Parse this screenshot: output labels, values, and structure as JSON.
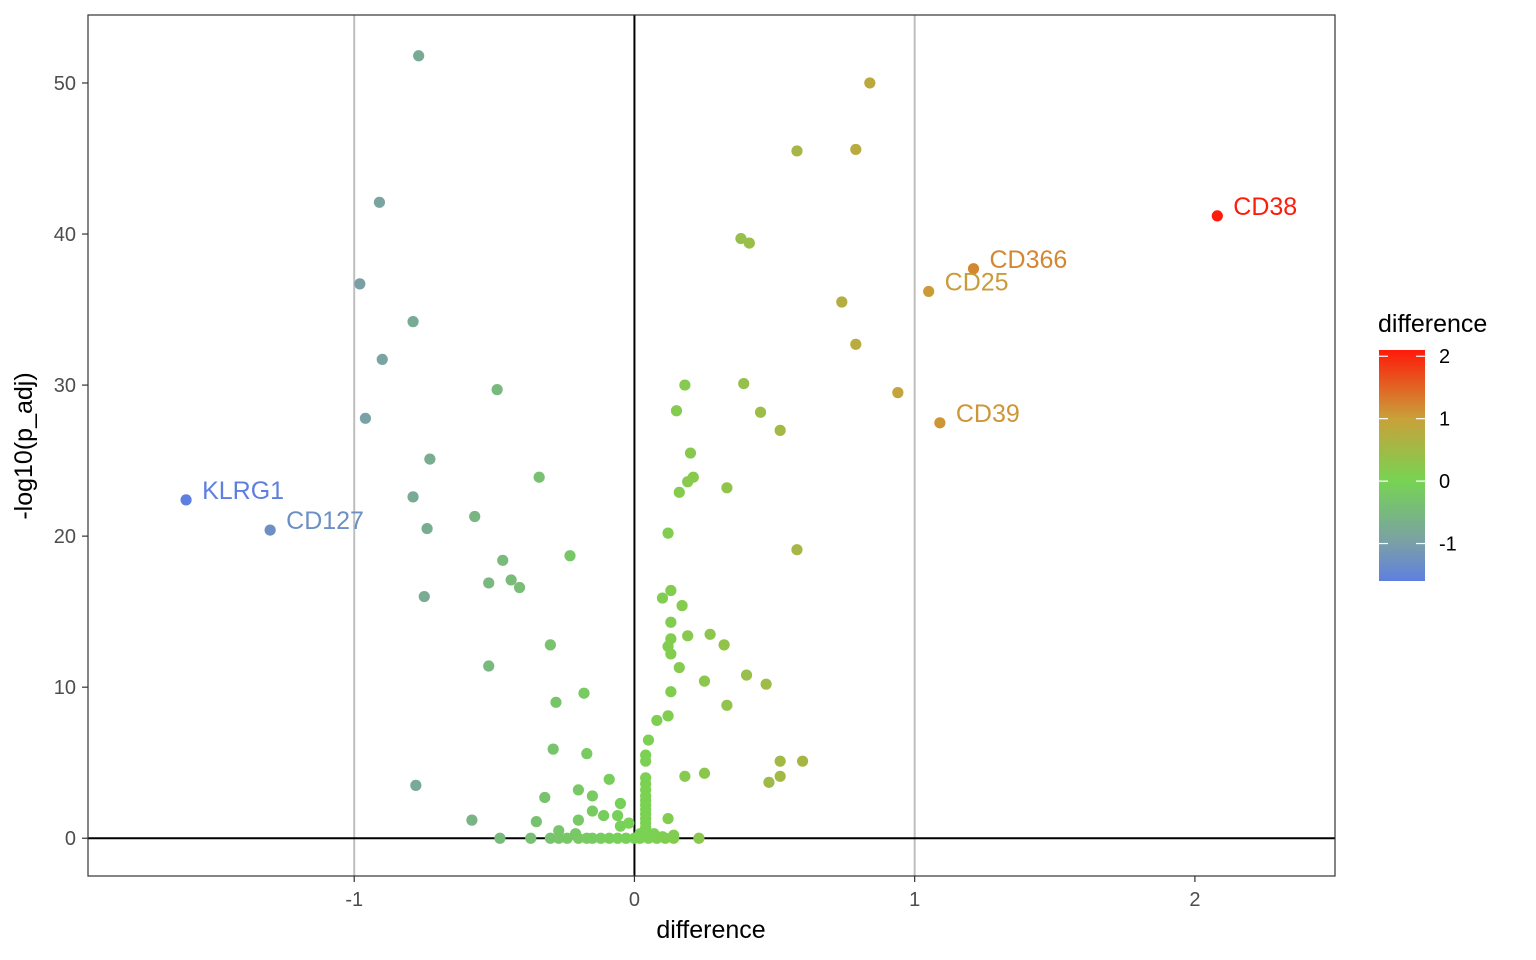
{
  "chart_data": {
    "type": "scatter",
    "title": "",
    "xlabel": "difference",
    "ylabel": "-log10(p_adj)",
    "xlim": [
      -1.95,
      2.5
    ],
    "ylim": [
      -2.5,
      54.5
    ],
    "xticks": [
      -1,
      0,
      1,
      2
    ],
    "xtick_labels": [
      "-1",
      "0",
      "1",
      "2"
    ],
    "yticks": [
      0,
      10,
      20,
      30,
      40,
      50
    ],
    "ytick_labels": [
      "0",
      "10",
      "20",
      "30",
      "40",
      "50"
    ],
    "grid": false,
    "reference_lines": {
      "vertical_gray": [
        -1,
        1
      ],
      "vertical_black": [
        0
      ],
      "horizontal_black": [
        0
      ]
    },
    "legend": {
      "title": "difference",
      "position": "right",
      "type": "colorbar",
      "range": [
        -1.6,
        2.1
      ],
      "ticks": [
        2,
        1,
        0,
        -1
      ],
      "tick_labels": [
        "2",
        "1",
        "0",
        "-1"
      ],
      "colors": [
        {
          "value": -1.6,
          "color": "#5f7fe0"
        },
        {
          "value": -1.0,
          "color": "#7a9fa8"
        },
        {
          "value": 0.0,
          "color": "#77d353"
        },
        {
          "value": 1.0,
          "color": "#c9a13a"
        },
        {
          "value": 2.1,
          "color": "#ff1a0a"
        }
      ]
    },
    "labeled_points": [
      {
        "label": "CD38",
        "x": 2.08,
        "y": 41.2
      },
      {
        "label": "CD366",
        "x": 1.21,
        "y": 37.7
      },
      {
        "label": "CD25",
        "x": 1.05,
        "y": 36.2
      },
      {
        "label": "CD39",
        "x": 1.09,
        "y": 27.5
      },
      {
        "label": "KLRG1",
        "x": -1.6,
        "y": 22.4
      },
      {
        "label": "CD127",
        "x": -1.3,
        "y": 20.4
      }
    ],
    "points": [
      [
        -0.77,
        51.8
      ],
      [
        -0.91,
        42.1
      ],
      [
        -0.98,
        36.7
      ],
      [
        -0.79,
        34.2
      ],
      [
        -0.9,
        31.7
      ],
      [
        -0.96,
        27.8
      ],
      [
        -0.73,
        25.1
      ],
      [
        -0.79,
        22.6
      ],
      [
        -0.74,
        20.5
      ],
      [
        -0.75,
        16.0
      ],
      [
        -0.78,
        3.5
      ],
      [
        -0.49,
        29.7
      ],
      [
        -0.34,
        23.9
      ],
      [
        -0.57,
        21.3
      ],
      [
        -0.23,
        18.7
      ],
      [
        -0.47,
        18.4
      ],
      [
        -0.44,
        17.1
      ],
      [
        -0.52,
        16.9
      ],
      [
        -0.41,
        16.6
      ],
      [
        -0.3,
        12.8
      ],
      [
        -0.52,
        11.4
      ],
      [
        -0.18,
        9.6
      ],
      [
        -0.28,
        9.0
      ],
      [
        -0.29,
        5.9
      ],
      [
        -0.17,
        5.6
      ],
      [
        -0.09,
        3.9
      ],
      [
        -0.2,
        3.2
      ],
      [
        -0.15,
        2.8
      ],
      [
        -0.32,
        2.7
      ],
      [
        -0.05,
        2.3
      ],
      [
        -0.15,
        1.8
      ],
      [
        -0.11,
        1.5
      ],
      [
        -0.06,
        1.5
      ],
      [
        -0.58,
        1.2
      ],
      [
        -0.35,
        1.1
      ],
      [
        -0.2,
        1.2
      ],
      [
        -0.05,
        0.8
      ],
      [
        -0.02,
        1.0
      ],
      [
        -0.27,
        0.5
      ],
      [
        -0.21,
        0.3
      ],
      [
        -0.48,
        0.0
      ],
      [
        -0.37,
        0.0
      ],
      [
        -0.3,
        0.0
      ],
      [
        -0.27,
        0.0
      ],
      [
        -0.24,
        0.0
      ],
      [
        -0.2,
        0.0
      ],
      [
        -0.17,
        0.0
      ],
      [
        -0.15,
        0.0
      ],
      [
        -0.12,
        0.0
      ],
      [
        -0.09,
        0.0
      ],
      [
        -0.06,
        0.0
      ],
      [
        -0.03,
        0.0
      ],
      [
        0.0,
        0.0
      ],
      [
        0.02,
        0.0
      ],
      [
        0.05,
        0.0
      ],
      [
        0.08,
        0.0
      ],
      [
        0.11,
        0.0
      ],
      [
        0.14,
        0.0
      ],
      [
        0.23,
        0.0
      ],
      [
        0.84,
        50.0
      ],
      [
        0.58,
        45.5
      ],
      [
        0.79,
        45.6
      ],
      [
        0.38,
        39.7
      ],
      [
        0.41,
        39.4
      ],
      [
        0.74,
        35.5
      ],
      [
        0.79,
        32.7
      ],
      [
        0.94,
        29.5
      ],
      [
        0.18,
        30.0
      ],
      [
        0.39,
        30.1
      ],
      [
        0.15,
        28.3
      ],
      [
        0.45,
        28.2
      ],
      [
        0.52,
        27.0
      ],
      [
        0.2,
        25.5
      ],
      [
        0.21,
        23.9
      ],
      [
        0.19,
        23.6
      ],
      [
        0.33,
        23.2
      ],
      [
        0.16,
        22.9
      ],
      [
        0.12,
        20.2
      ],
      [
        0.58,
        19.1
      ],
      [
        0.13,
        16.4
      ],
      [
        0.1,
        15.9
      ],
      [
        0.17,
        15.4
      ],
      [
        0.13,
        14.3
      ],
      [
        0.27,
        13.5
      ],
      [
        0.19,
        13.4
      ],
      [
        0.13,
        13.2
      ],
      [
        0.12,
        12.7
      ],
      [
        0.32,
        12.8
      ],
      [
        0.13,
        12.2
      ],
      [
        0.16,
        11.3
      ],
      [
        0.4,
        10.8
      ],
      [
        0.25,
        10.4
      ],
      [
        0.47,
        10.2
      ],
      [
        0.13,
        9.7
      ],
      [
        0.33,
        8.8
      ],
      [
        0.12,
        8.1
      ],
      [
        0.08,
        7.8
      ],
      [
        0.05,
        6.5
      ],
      [
        0.04,
        5.5
      ],
      [
        0.04,
        5.1
      ],
      [
        0.52,
        5.1
      ],
      [
        0.6,
        5.1
      ],
      [
        0.25,
        4.3
      ],
      [
        0.18,
        4.1
      ],
      [
        0.52,
        4.1
      ],
      [
        0.48,
        3.7
      ],
      [
        0.04,
        4.0
      ],
      [
        0.04,
        3.6
      ],
      [
        0.04,
        3.2
      ],
      [
        0.04,
        2.8
      ],
      [
        0.04,
        2.5
      ],
      [
        0.04,
        2.2
      ],
      [
        0.04,
        1.9
      ],
      [
        0.04,
        1.6
      ],
      [
        0.04,
        1.3
      ],
      [
        0.12,
        1.3
      ],
      [
        0.04,
        1.0
      ],
      [
        0.04,
        0.7
      ],
      [
        0.04,
        0.4
      ],
      [
        0.02,
        0.3
      ],
      [
        0.07,
        0.3
      ],
      [
        0.14,
        0.2
      ],
      [
        0.1,
        0.1
      ]
    ]
  }
}
